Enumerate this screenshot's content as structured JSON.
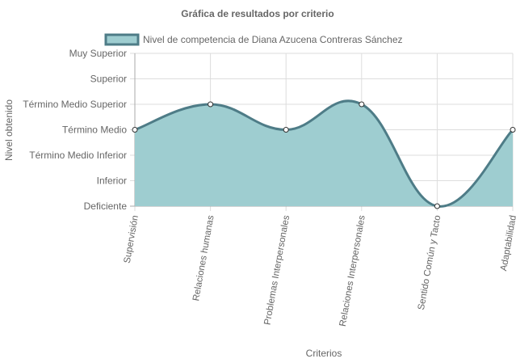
{
  "chart_data": {
    "type": "area",
    "title": "Gráfica de resultados por criterio",
    "xlabel": "Criterios",
    "ylabel": "Nivel obtenido",
    "categories": [
      "Supervisión",
      "Relaciones humanas",
      "Problemas Interpersonales",
      "Relaciones Interpersonales",
      "Sentido Común y Tacto",
      "Adaptabilidad"
    ],
    "y_levels": [
      "Deficiente",
      "Inferior",
      "Término Medio Inferior",
      "Término Medio",
      "Término Medio Superior",
      "Superior",
      "Muy Superior"
    ],
    "ylim": [
      0,
      6
    ],
    "series": [
      {
        "name": "Nivel de competencia de Diana Azucena Contreras Sánchez",
        "values": [
          3,
          4,
          3,
          4,
          0,
          3
        ]
      }
    ],
    "legend_position": "top",
    "grid": true,
    "colors": {
      "fill": "#9ecdd0",
      "line": "#4e7c87",
      "point_fill": "#ffffff",
      "grid": "#dddddd",
      "axis": "#666666"
    }
  }
}
